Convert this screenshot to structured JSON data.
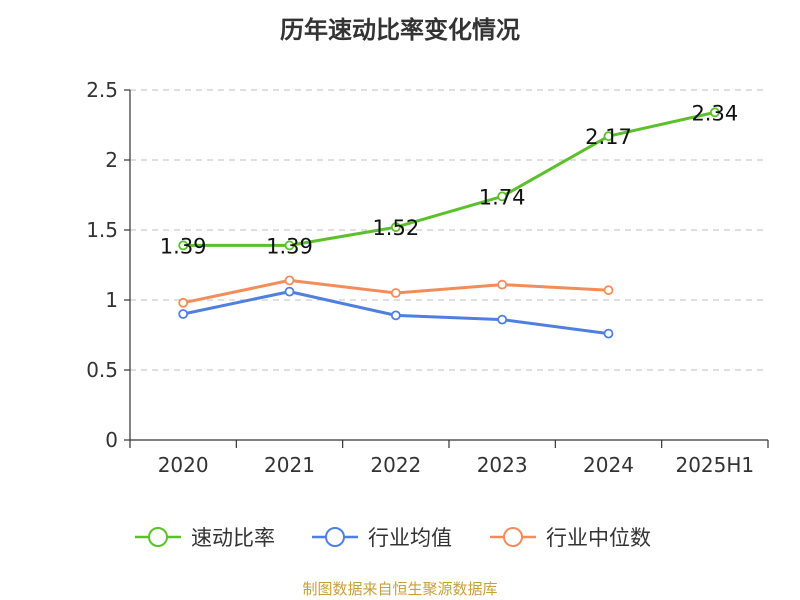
{
  "title": "历年速动比率变化情况",
  "source": "制图数据来自恒生聚源数据库",
  "chart_data": {
    "type": "line",
    "title": "历年速动比率变化情况",
    "categories": [
      "2020",
      "2021",
      "2022",
      "2023",
      "2024",
      "2025H1"
    ],
    "ylim": [
      0,
      2.5
    ],
    "yticks": [
      "0",
      "0.5",
      "1",
      "1.5",
      "2",
      "2.5"
    ],
    "grid": true,
    "legend_position": "bottom",
    "series": [
      {
        "name": "速动比率",
        "color": "#5cc02d",
        "values": [
          1.39,
          1.39,
          1.52,
          1.74,
          2.17,
          2.34
        ],
        "labels": [
          "1.39",
          "1.39",
          "1.52",
          "1.74",
          "2.17",
          "2.34"
        ]
      },
      {
        "name": "行业均值",
        "color": "#4f7fdf",
        "values": [
          0.9,
          1.06,
          0.89,
          0.86,
          0.76,
          null
        ]
      },
      {
        "name": "行业中位数",
        "color": "#f28c5a",
        "values": [
          0.98,
          1.14,
          1.05,
          1.11,
          1.07,
          null
        ]
      }
    ]
  }
}
